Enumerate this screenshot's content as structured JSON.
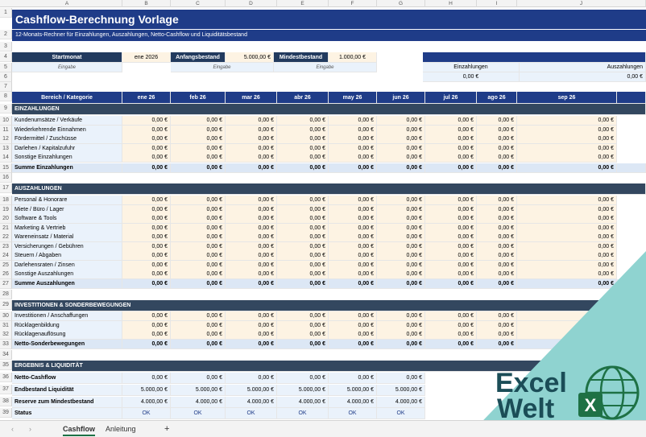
{
  "columns": [
    "A",
    "B",
    "C",
    "D",
    "E",
    "F",
    "G",
    "H",
    "I",
    "J"
  ],
  "title": "Cashflow-Berechnung Vorlage",
  "subtitle": "12-Monats-Rechner für Einzahlungen, Auszahlungen, Netto-Cashflow und Liquiditätsbestand",
  "settings": {
    "start_label": "Startmonat",
    "start_value": "ene 2026",
    "start_hint": "Eingabe",
    "opening_label": "Anfangsbestand",
    "opening_value": "5.000,00 €",
    "opening_hint": "Eingabe",
    "min_label": "Mindestbestand",
    "min_value": "1.000,00 €",
    "min_hint": "Eingabe"
  },
  "summary": {
    "einz_label": "Einzahlungen",
    "einz_value": "0,00 €",
    "ausz_label": "Auszahlungen",
    "ausz_value": "0,00 €"
  },
  "header": {
    "category": "Bereich / Kategorie",
    "months": [
      "ene 26",
      "feb 26",
      "mar 26",
      "abr 26",
      "may 26",
      "jun 26",
      "jul 26",
      "ago 26",
      "sep 26"
    ]
  },
  "zero": "0,00 €",
  "sections": {
    "einz": "EINZAHLUNGEN",
    "ausz": "AUSZAHLUNGEN",
    "inv": "INVESTITIONEN & SONDERBEWEGUNGEN",
    "erg": "ERGEBNIS & LIQUIDITÄT"
  },
  "einz_rows": [
    "Kundenumsätze / Verkäufe",
    "Wiederkehrende Einnahmen",
    "Fördermittel / Zuschüsse",
    "Darlehen / Kapitalzufuhr",
    "Sonstige Einzahlungen"
  ],
  "einz_sum": "Summe Einzahlungen",
  "ausz_rows": [
    "Personal & Honorare",
    "Miete / Büro / Lager",
    "Software & Tools",
    "Marketing & Vertrieb",
    "Wareneinsatz / Material",
    "Versicherungen / Gebühren",
    "Steuern / Abgaben",
    "Darlehensraten / Zinsen",
    "Sonstige Auszahlungen"
  ],
  "ausz_sum": "Summe Auszahlungen",
  "inv_rows": [
    "Investitionen / Anschaffungen",
    "Rücklagenbildung",
    "Rücklagenauflösung"
  ],
  "inv_sum": "Netto-Sonderbewegungen",
  "erg_rows": {
    "netto": "Netto-Cashflow",
    "endbestand": "Endbestand Liquidität",
    "endbestand_val": "5.000,00 €",
    "reserve": "Reserve zum Mindestbestand",
    "reserve_val": "4.000,00 €",
    "status": "Status",
    "status_val": "OK"
  },
  "tabs": [
    "Cashflow",
    "Anleitung"
  ],
  "add_sheet": "+",
  "logo": {
    "line1": "Excel",
    "line2": "Welt",
    "badge": "X"
  },
  "colors": {
    "navy": "#1f3c88",
    "teal": "#8fd3d0",
    "green": "#1e7145",
    "logo_dark": "#1b4d57"
  }
}
